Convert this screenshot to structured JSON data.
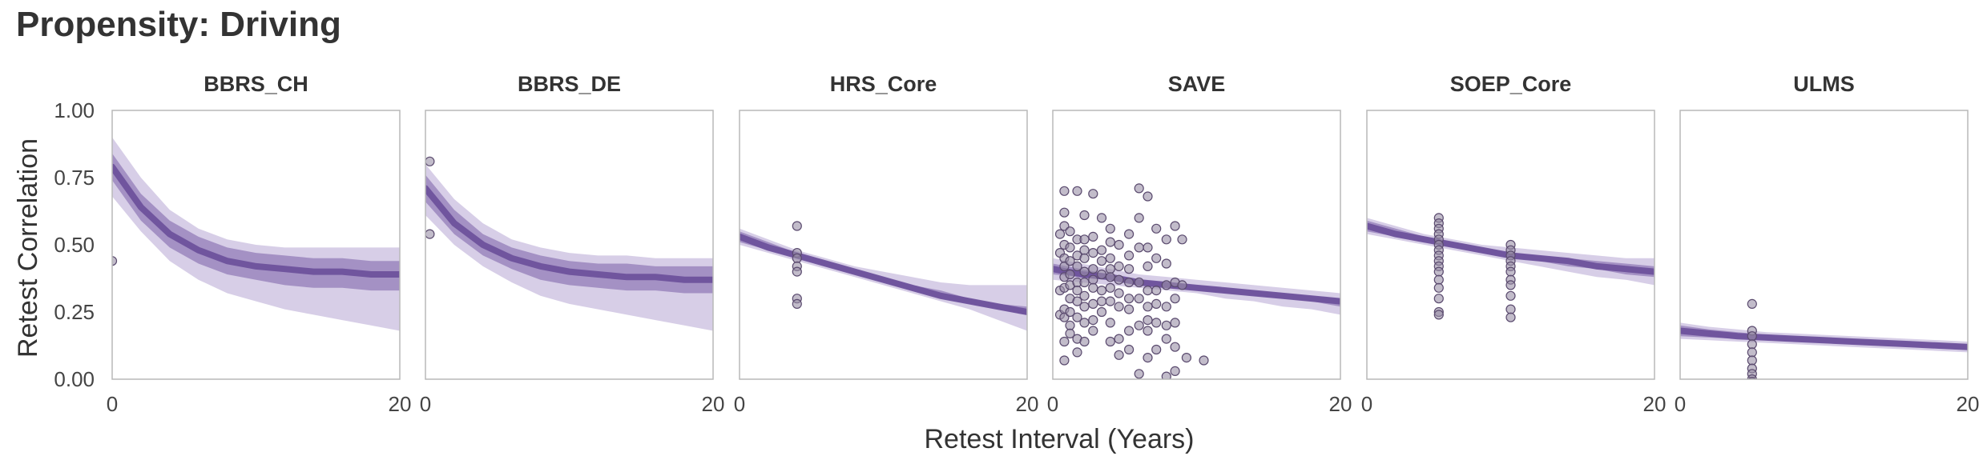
{
  "title": "Propensity: Driving",
  "colors": {
    "line": "#6a4f9a",
    "band_dark": "#7a5fa8",
    "band_light": "#b7a6d3",
    "point_fill": "#9a8fa6",
    "frame": "#b8b8b8"
  },
  "chart_data": {
    "type": "line",
    "title": "Propensity: Driving",
    "xlabel": "Retest Interval (Years)",
    "ylabel": "Retest Correlation",
    "xlim": [
      0,
      20
    ],
    "ylim": [
      0,
      1
    ],
    "xticks": [
      0,
      20
    ],
    "yticks": [
      "0.00",
      "0.25",
      "0.50",
      "0.75",
      "1.00"
    ],
    "grid": false,
    "facets": [
      {
        "name": "BBRS_CH",
        "fit": {
          "x": [
            0,
            2,
            4,
            6,
            8,
            10,
            12,
            14,
            16,
            18,
            20
          ],
          "y": [
            0.79,
            0.64,
            0.54,
            0.48,
            0.44,
            0.42,
            0.41,
            0.4,
            0.4,
            0.39,
            0.39
          ]
        },
        "inner_band": {
          "lower": [
            0.74,
            0.59,
            0.49,
            0.43,
            0.39,
            0.37,
            0.35,
            0.34,
            0.34,
            0.33,
            0.33
          ],
          "upper": [
            0.84,
            0.69,
            0.59,
            0.53,
            0.49,
            0.47,
            0.46,
            0.45,
            0.45,
            0.44,
            0.44
          ]
        },
        "outer_band": {
          "lower": [
            0.68,
            0.55,
            0.44,
            0.37,
            0.32,
            0.29,
            0.26,
            0.24,
            0.22,
            0.2,
            0.18
          ],
          "upper": [
            0.9,
            0.75,
            0.63,
            0.56,
            0.52,
            0.5,
            0.49,
            0.49,
            0.49,
            0.49,
            0.49
          ]
        },
        "points": [
          [
            0,
            0.44
          ]
        ]
      },
      {
        "name": "BBRS_DE",
        "fit": {
          "x": [
            0,
            2,
            4,
            6,
            8,
            10,
            12,
            14,
            16,
            18,
            20
          ],
          "y": [
            0.71,
            0.58,
            0.5,
            0.45,
            0.42,
            0.4,
            0.39,
            0.38,
            0.38,
            0.37,
            0.37
          ]
        },
        "inner_band": {
          "lower": [
            0.66,
            0.54,
            0.46,
            0.41,
            0.37,
            0.35,
            0.34,
            0.33,
            0.33,
            0.32,
            0.32
          ],
          "upper": [
            0.76,
            0.63,
            0.54,
            0.49,
            0.46,
            0.44,
            0.43,
            0.43,
            0.42,
            0.42,
            0.42
          ]
        },
        "outer_band": {
          "lower": [
            0.61,
            0.5,
            0.42,
            0.36,
            0.31,
            0.28,
            0.26,
            0.24,
            0.22,
            0.2,
            0.18
          ],
          "upper": [
            0.8,
            0.67,
            0.58,
            0.52,
            0.49,
            0.47,
            0.46,
            0.46,
            0.45,
            0.45,
            0.45
          ]
        },
        "points": [
          [
            0.3,
            0.81
          ],
          [
            0.3,
            0.54
          ]
        ]
      },
      {
        "name": "HRS_Core",
        "fit": {
          "x": [
            0,
            2,
            4,
            6,
            8,
            10,
            12,
            14,
            16,
            18,
            20
          ],
          "y": [
            0.53,
            0.49,
            0.46,
            0.43,
            0.4,
            0.37,
            0.34,
            0.31,
            0.29,
            0.27,
            0.25
          ]
        },
        "inner_band": {
          "lower": [
            0.51,
            0.48,
            0.45,
            0.42,
            0.39,
            0.36,
            0.33,
            0.3,
            0.28,
            0.26,
            0.24
          ],
          "upper": [
            0.55,
            0.51,
            0.47,
            0.44,
            0.41,
            0.38,
            0.35,
            0.33,
            0.3,
            0.28,
            0.27
          ]
        },
        "outer_band": {
          "lower": [
            0.5,
            0.47,
            0.44,
            0.41,
            0.38,
            0.35,
            0.32,
            0.29,
            0.26,
            0.22,
            0.18
          ],
          "upper": [
            0.56,
            0.52,
            0.48,
            0.45,
            0.42,
            0.4,
            0.38,
            0.36,
            0.35,
            0.35,
            0.35
          ]
        },
        "points": [
          [
            4,
            0.57
          ],
          [
            4,
            0.47
          ],
          [
            4,
            0.45
          ],
          [
            4,
            0.42
          ],
          [
            4,
            0.4
          ],
          [
            4,
            0.3
          ],
          [
            4,
            0.28
          ]
        ]
      },
      {
        "name": "SAVE",
        "fit": {
          "x": [
            0,
            2,
            4,
            6,
            8,
            10,
            12,
            14,
            16,
            18,
            20
          ],
          "y": [
            0.41,
            0.39,
            0.38,
            0.36,
            0.35,
            0.34,
            0.33,
            0.32,
            0.31,
            0.3,
            0.29
          ]
        },
        "inner_band": {
          "lower": [
            0.39,
            0.38,
            0.37,
            0.35,
            0.34,
            0.33,
            0.32,
            0.31,
            0.3,
            0.29,
            0.27
          ],
          "upper": [
            0.43,
            0.41,
            0.39,
            0.37,
            0.36,
            0.35,
            0.34,
            0.33,
            0.32,
            0.31,
            0.3
          ]
        },
        "outer_band": {
          "lower": [
            0.37,
            0.36,
            0.35,
            0.34,
            0.33,
            0.32,
            0.3,
            0.29,
            0.27,
            0.26,
            0.24
          ],
          "upper": [
            0.45,
            0.43,
            0.41,
            0.39,
            0.38,
            0.37,
            0.36,
            0.35,
            0.34,
            0.33,
            0.32
          ]
        },
        "points": [
          [
            0.5,
            0.54
          ],
          [
            0.5,
            0.47
          ],
          [
            0.5,
            0.33
          ],
          [
            0.5,
            0.24
          ],
          [
            0.5,
            -0.02
          ],
          [
            0.8,
            0.7
          ],
          [
            0.8,
            0.62
          ],
          [
            0.8,
            0.57
          ],
          [
            0.8,
            0.5
          ],
          [
            0.8,
            0.45
          ],
          [
            0.8,
            0.42
          ],
          [
            0.8,
            0.38
          ],
          [
            0.8,
            0.34
          ],
          [
            0.8,
            0.26
          ],
          [
            0.8,
            0.23
          ],
          [
            0.8,
            0.14
          ],
          [
            0.8,
            0.07
          ],
          [
            1.2,
            0.55
          ],
          [
            1.2,
            0.49
          ],
          [
            1.2,
            0.44
          ],
          [
            1.2,
            0.39
          ],
          [
            1.2,
            0.35
          ],
          [
            1.2,
            0.3
          ],
          [
            1.2,
            0.25
          ],
          [
            1.2,
            0.2
          ],
          [
            1.2,
            0.17
          ],
          [
            1.7,
            0.7
          ],
          [
            1.7,
            0.52
          ],
          [
            1.7,
            0.46
          ],
          [
            1.7,
            0.42
          ],
          [
            1.7,
            0.36
          ],
          [
            1.7,
            0.33
          ],
          [
            1.7,
            0.29
          ],
          [
            1.7,
            0.23
          ],
          [
            1.7,
            0.15
          ],
          [
            1.7,
            0.1
          ],
          [
            2.2,
            0.61
          ],
          [
            2.2,
            0.52
          ],
          [
            2.2,
            0.48
          ],
          [
            2.2,
            0.45
          ],
          [
            2.2,
            0.4
          ],
          [
            2.2,
            0.36
          ],
          [
            2.2,
            0.31
          ],
          [
            2.2,
            0.27
          ],
          [
            2.2,
            0.21
          ],
          [
            2.2,
            0.14
          ],
          [
            2.8,
            0.69
          ],
          [
            2.8,
            0.53
          ],
          [
            2.8,
            0.47
          ],
          [
            2.8,
            0.41
          ],
          [
            2.8,
            0.37
          ],
          [
            2.8,
            0.34
          ],
          [
            2.8,
            0.28
          ],
          [
            2.8,
            0.22
          ],
          [
            2.8,
            0.18
          ],
          [
            3.4,
            0.6
          ],
          [
            3.4,
            0.48
          ],
          [
            3.4,
            0.44
          ],
          [
            3.4,
            0.39
          ],
          [
            3.4,
            0.33
          ],
          [
            3.4,
            0.29
          ],
          [
            3.4,
            0.25
          ],
          [
            4.0,
            0.56
          ],
          [
            4.0,
            0.51
          ],
          [
            4.0,
            0.45
          ],
          [
            4.0,
            0.41
          ],
          [
            4.0,
            0.38
          ],
          [
            4.0,
            0.34
          ],
          [
            4.0,
            0.29
          ],
          [
            4.0,
            0.21
          ],
          [
            4.0,
            0.14
          ],
          [
            4.6,
            0.5
          ],
          [
            4.6,
            0.42
          ],
          [
            4.6,
            0.37
          ],
          [
            4.6,
            0.32
          ],
          [
            4.6,
            0.27
          ],
          [
            4.6,
            0.15
          ],
          [
            4.6,
            0.09
          ],
          [
            5.3,
            0.54
          ],
          [
            5.3,
            0.46
          ],
          [
            5.3,
            0.41
          ],
          [
            5.3,
            0.36
          ],
          [
            5.3,
            0.3
          ],
          [
            5.3,
            0.26
          ],
          [
            5.3,
            0.18
          ],
          [
            5.3,
            0.11
          ],
          [
            6.0,
            0.71
          ],
          [
            6.0,
            0.6
          ],
          [
            6.0,
            0.49
          ],
          [
            6.0,
            0.36
          ],
          [
            6.0,
            0.3
          ],
          [
            6.0,
            0.2
          ],
          [
            6.0,
            0.02
          ],
          [
            6.6,
            0.68
          ],
          [
            6.6,
            0.49
          ],
          [
            6.6,
            0.42
          ],
          [
            6.6,
            0.33
          ],
          [
            6.6,
            0.27
          ],
          [
            6.6,
            0.22
          ],
          [
            6.6,
            0.18
          ],
          [
            6.6,
            0.08
          ],
          [
            7.2,
            0.56
          ],
          [
            7.2,
            0.45
          ],
          [
            7.2,
            0.33
          ],
          [
            7.2,
            0.28
          ],
          [
            7.2,
            0.21
          ],
          [
            7.2,
            0.11
          ],
          [
            7.9,
            0.52
          ],
          [
            7.9,
            0.43
          ],
          [
            7.9,
            0.35
          ],
          [
            7.9,
            0.27
          ],
          [
            7.9,
            0.2
          ],
          [
            7.9,
            0.15
          ],
          [
            7.9,
            0.01
          ],
          [
            8.5,
            0.57
          ],
          [
            8.5,
            0.36
          ],
          [
            8.5,
            0.3
          ],
          [
            8.5,
            0.21
          ],
          [
            8.5,
            0.12
          ],
          [
            8.5,
            0.03
          ],
          [
            9.0,
            0.52
          ],
          [
            9.0,
            0.35
          ],
          [
            9.3,
            0.08
          ],
          [
            10.5,
            0.07
          ]
        ]
      },
      {
        "name": "SOEP_Core",
        "fit": {
          "x": [
            0,
            2,
            4,
            6,
            8,
            10,
            12,
            14,
            16,
            18,
            20
          ],
          "y": [
            0.57,
            0.54,
            0.52,
            0.5,
            0.48,
            0.46,
            0.45,
            0.44,
            0.42,
            0.41,
            0.4
          ]
        },
        "inner_band": {
          "lower": [
            0.55,
            0.53,
            0.51,
            0.49,
            0.47,
            0.45,
            0.44,
            0.42,
            0.41,
            0.39,
            0.38
          ],
          "upper": [
            0.59,
            0.56,
            0.53,
            0.51,
            0.49,
            0.47,
            0.46,
            0.45,
            0.44,
            0.43,
            0.42
          ]
        },
        "outer_band": {
          "lower": [
            0.54,
            0.52,
            0.5,
            0.48,
            0.46,
            0.44,
            0.42,
            0.4,
            0.38,
            0.37,
            0.35
          ],
          "upper": [
            0.6,
            0.57,
            0.54,
            0.52,
            0.5,
            0.49,
            0.48,
            0.47,
            0.46,
            0.45,
            0.45
          ]
        },
        "points": [
          [
            5,
            0.6
          ],
          [
            5,
            0.58
          ],
          [
            5,
            0.56
          ],
          [
            5,
            0.54
          ],
          [
            5,
            0.52
          ],
          [
            5,
            0.5
          ],
          [
            5,
            0.48
          ],
          [
            5,
            0.46
          ],
          [
            5,
            0.44
          ],
          [
            5,
            0.42
          ],
          [
            5,
            0.4
          ],
          [
            5,
            0.37
          ],
          [
            5,
            0.34
          ],
          [
            5,
            0.3
          ],
          [
            5,
            0.25
          ],
          [
            5,
            0.24
          ],
          [
            10,
            0.5
          ],
          [
            10,
            0.48
          ],
          [
            10,
            0.46
          ],
          [
            10,
            0.44
          ],
          [
            10,
            0.42
          ],
          [
            10,
            0.4
          ],
          [
            10,
            0.37
          ],
          [
            10,
            0.35
          ],
          [
            10,
            0.31
          ],
          [
            10,
            0.26
          ],
          [
            10,
            0.23
          ]
        ]
      },
      {
        "name": "ULMS",
        "fit": {
          "x": [
            0,
            2,
            4,
            6,
            8,
            10,
            12,
            14,
            16,
            18,
            20
          ],
          "y": [
            0.18,
            0.17,
            0.16,
            0.155,
            0.15,
            0.145,
            0.14,
            0.135,
            0.13,
            0.125,
            0.12
          ]
        },
        "inner_band": {
          "lower": [
            0.16,
            0.155,
            0.15,
            0.145,
            0.14,
            0.135,
            0.13,
            0.125,
            0.12,
            0.115,
            0.11
          ],
          "upper": [
            0.2,
            0.185,
            0.175,
            0.165,
            0.16,
            0.155,
            0.15,
            0.145,
            0.14,
            0.135,
            0.13
          ]
        },
        "outer_band": {
          "lower": [
            0.15,
            0.145,
            0.14,
            0.135,
            0.13,
            0.125,
            0.12,
            0.115,
            0.11,
            0.105,
            0.1
          ],
          "upper": [
            0.21,
            0.195,
            0.185,
            0.175,
            0.17,
            0.165,
            0.16,
            0.155,
            0.15,
            0.145,
            0.14
          ]
        },
        "points": [
          [
            5,
            0.28
          ],
          [
            5,
            0.18
          ],
          [
            5,
            0.16
          ],
          [
            5,
            0.13
          ],
          [
            5,
            0.1
          ],
          [
            5,
            0.07
          ],
          [
            5,
            0.04
          ],
          [
            5,
            0.02
          ],
          [
            5,
            0.0
          ],
          [
            5,
            -0.01
          ]
        ]
      }
    ]
  }
}
